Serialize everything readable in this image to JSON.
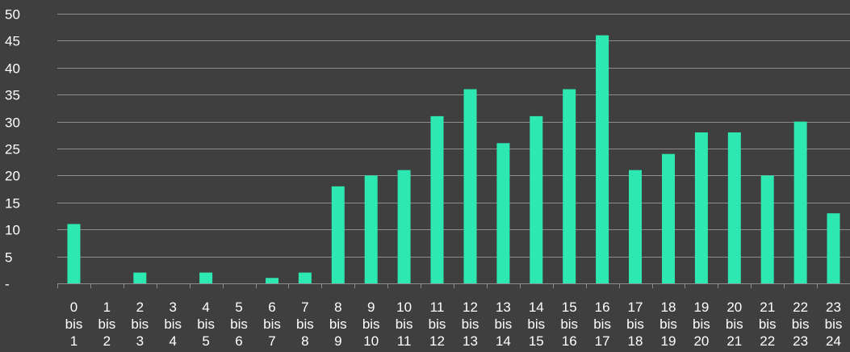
{
  "chart_data": {
    "type": "bar",
    "categories": [
      [
        "0",
        "bis",
        "1"
      ],
      [
        "1",
        "bis",
        "2"
      ],
      [
        "2",
        "bis",
        "3"
      ],
      [
        "3",
        "bis",
        "4"
      ],
      [
        "4",
        "bis",
        "5"
      ],
      [
        "5",
        "bis",
        "6"
      ],
      [
        "6",
        "bis",
        "7"
      ],
      [
        "7",
        "bis",
        "8"
      ],
      [
        "8",
        "bis",
        "9"
      ],
      [
        "9",
        "bis",
        "10"
      ],
      [
        "10",
        "bis",
        "11"
      ],
      [
        "11",
        "bis",
        "12"
      ],
      [
        "12",
        "bis",
        "13"
      ],
      [
        "13",
        "bis",
        "14"
      ],
      [
        "14",
        "bis",
        "15"
      ],
      [
        "15",
        "bis",
        "16"
      ],
      [
        "16",
        "bis",
        "17"
      ],
      [
        "17",
        "bis",
        "18"
      ],
      [
        "18",
        "bis",
        "19"
      ],
      [
        "19",
        "bis",
        "20"
      ],
      [
        "20",
        "bis",
        "21"
      ],
      [
        "21",
        "bis",
        "22"
      ],
      [
        "22",
        "bis",
        "23"
      ],
      [
        "23",
        "bis",
        "24"
      ]
    ],
    "values": [
      11,
      0,
      2,
      0,
      2,
      0,
      1,
      2,
      18,
      20,
      21,
      31,
      36,
      26,
      31,
      36,
      46,
      21,
      24,
      28,
      28,
      20,
      30,
      13
    ],
    "ylim": [
      0,
      50
    ],
    "yticks": [
      "-",
      "5",
      "10",
      "15",
      "20",
      "25",
      "30",
      "35",
      "40",
      "45",
      "50"
    ],
    "grid": true,
    "colors": {
      "bar": "#2de8b0",
      "background": "#3f3f3f",
      "grid": "#8c8c8c",
      "text": "#ffffff"
    }
  }
}
